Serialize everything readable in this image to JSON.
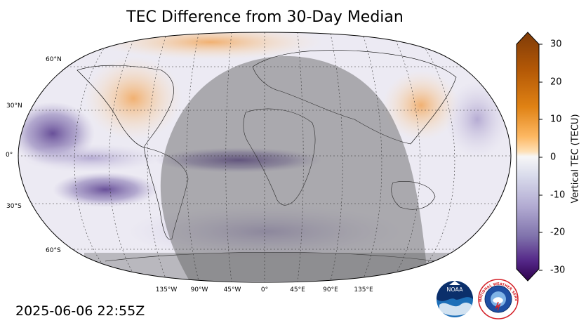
{
  "map": {
    "title": "TEC Difference from 30-Day Median",
    "projection": "robinson",
    "lat_labels": [
      "60°N",
      "30°N",
      "0°",
      "30°S",
      "60°S"
    ],
    "lon_labels": [
      "135°W",
      "90°W",
      "45°W",
      "0°",
      "45°E",
      "90°E",
      "135°E"
    ],
    "night_shading": "dark overlay on night side of terminator",
    "colors": {
      "positive": "#8a4a0d",
      "neutral": "#f5f5f5",
      "negative": "#2d0a4e",
      "night": "#555555"
    },
    "anomaly_regions": [
      "negative TEC over eastern Pacific near equator",
      "positive TEC over North America and east Asia",
      "negative band along equatorial Atlantic"
    ]
  },
  "colorbar": {
    "label": "Vertical TEC (TECU)",
    "range": [
      -30,
      30
    ],
    "ticks": [
      "30",
      "20",
      "10",
      "0",
      "-10",
      "-20",
      "-30"
    ],
    "colormap": "PuOr_r"
  },
  "timestamp": "2025-06-06 22:55Z",
  "logos": {
    "noaa": {
      "icon": "noaa-logo",
      "text": "NOAA"
    },
    "nws": {
      "icon": "nws-logo",
      "text": "NATIONAL WEATHER SERVICE"
    }
  }
}
